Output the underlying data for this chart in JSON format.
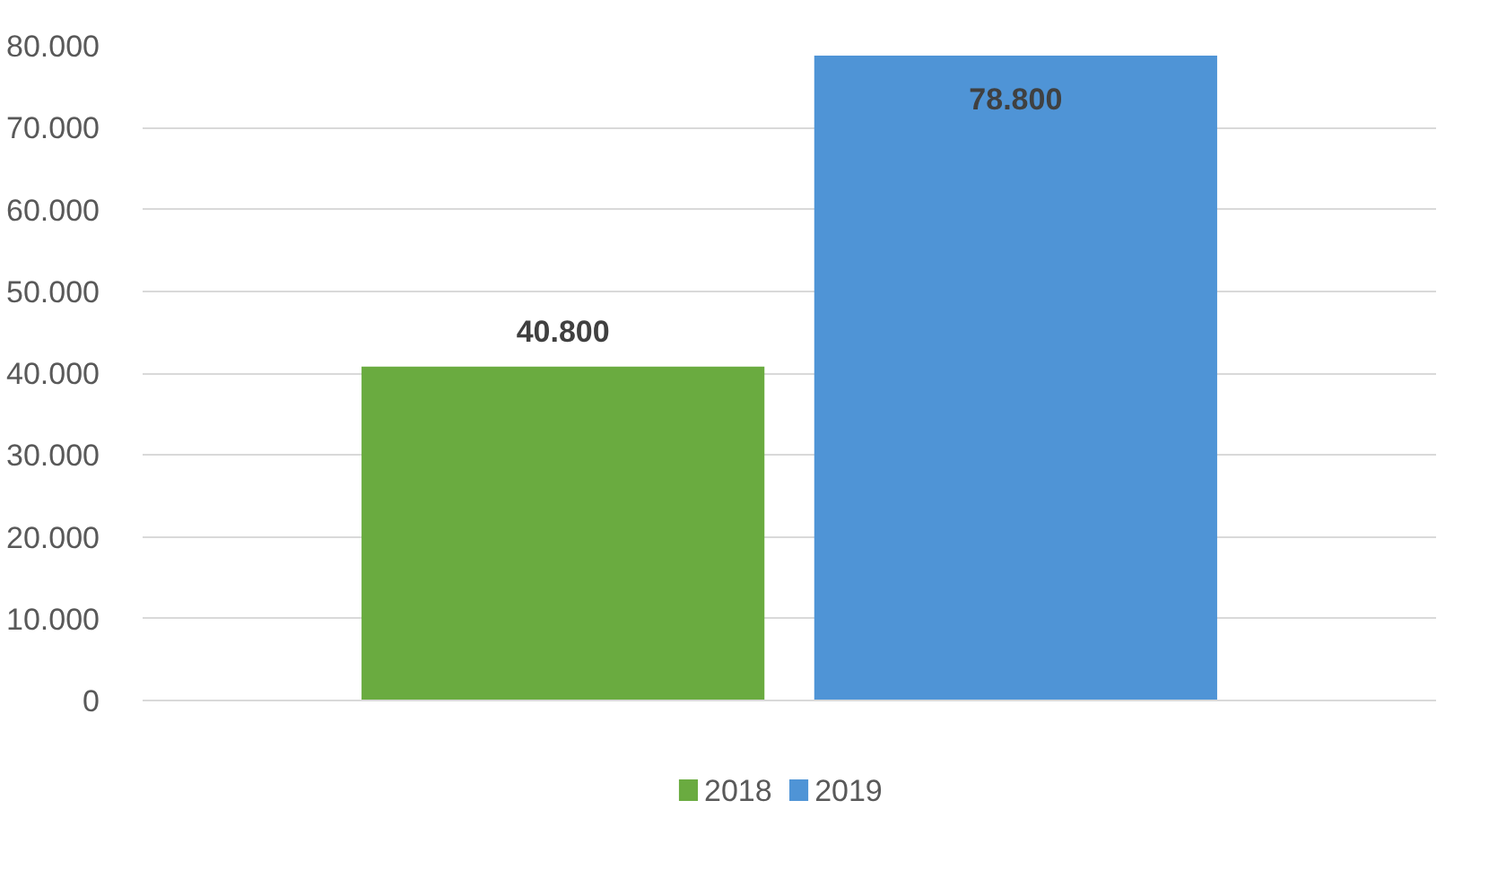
{
  "chart_data": {
    "type": "bar",
    "categories": [
      null
    ],
    "series": [
      {
        "name": "2018",
        "color": "#6aab40",
        "values": [
          40800
        ],
        "value_labels": [
          "40.800"
        ]
      },
      {
        "name": "2019",
        "color": "#4f94d6",
        "values": [
          78800
        ],
        "value_labels": [
          "78.800"
        ]
      }
    ],
    "ylim": [
      0,
      80000
    ],
    "yticks": [
      0,
      {
        "value": 10000,
        "label": "10.000"
      },
      {
        "value": 20000,
        "label": "20.000"
      },
      {
        "value": 30000,
        "label": "30.000"
      },
      {
        "value": 40000,
        "label": "40.000"
      },
      {
        "value": 50000,
        "label": "50.000"
      },
      {
        "value": 60000,
        "label": "60.000"
      },
      {
        "value": 70000,
        "label": "70.000"
      },
      {
        "value": 80000,
        "label": "80.000"
      }
    ],
    "grid": "y",
    "legend": "bottom",
    "data_labels": true
  }
}
